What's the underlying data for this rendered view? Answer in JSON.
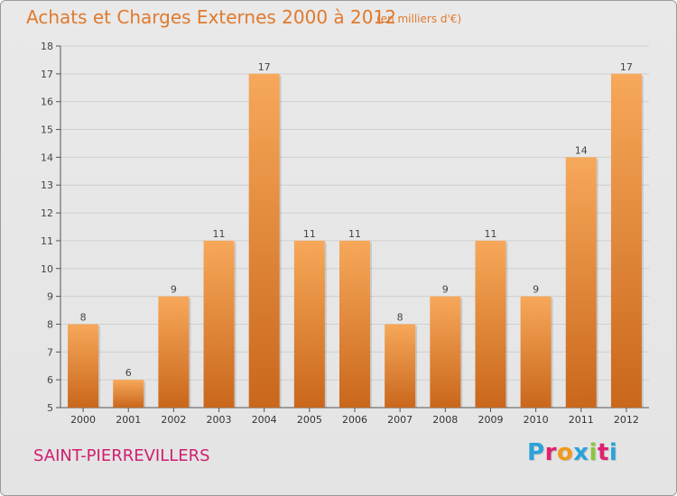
{
  "header": {
    "title": "Achats et Charges Externes 2000 à 2012",
    "unit": "(en milliers d'€)"
  },
  "footer": {
    "place": "SAINT-PIERREVILLERS",
    "logo_text": "Proxiti",
    "logo_letters": [
      "P",
      "r",
      "o",
      "x",
      "i",
      "t",
      "i"
    ],
    "logo_colors": [
      "#2aa3d8",
      "#e0206f",
      "#f29a1a",
      "#2aa3d8",
      "#8cc63f",
      "#e0206f",
      "#2aa3d8"
    ]
  },
  "colors": {
    "accent": "#e07a2e",
    "place": "#cf1e6f",
    "bar_top": "#f7a85a",
    "bar_bottom": "#c9671c",
    "grid": "#cfcfcf"
  },
  "chart_data": {
    "type": "bar",
    "title": "Achats et Charges Externes 2000 à 2012",
    "subtitle": "(en milliers d'€)",
    "categories": [
      "2000",
      "2001",
      "2002",
      "2003",
      "2004",
      "2005",
      "2006",
      "2007",
      "2008",
      "2009",
      "2010",
      "2011",
      "2012"
    ],
    "values": [
      8,
      6,
      9,
      11,
      17,
      11,
      11,
      8,
      9,
      11,
      9,
      14,
      17
    ],
    "ylim": [
      5,
      18
    ],
    "yticks": [
      5,
      6,
      7,
      8,
      9,
      10,
      11,
      12,
      13,
      14,
      15,
      16,
      17,
      18
    ],
    "grid": true,
    "xlabel": "",
    "ylabel": ""
  }
}
